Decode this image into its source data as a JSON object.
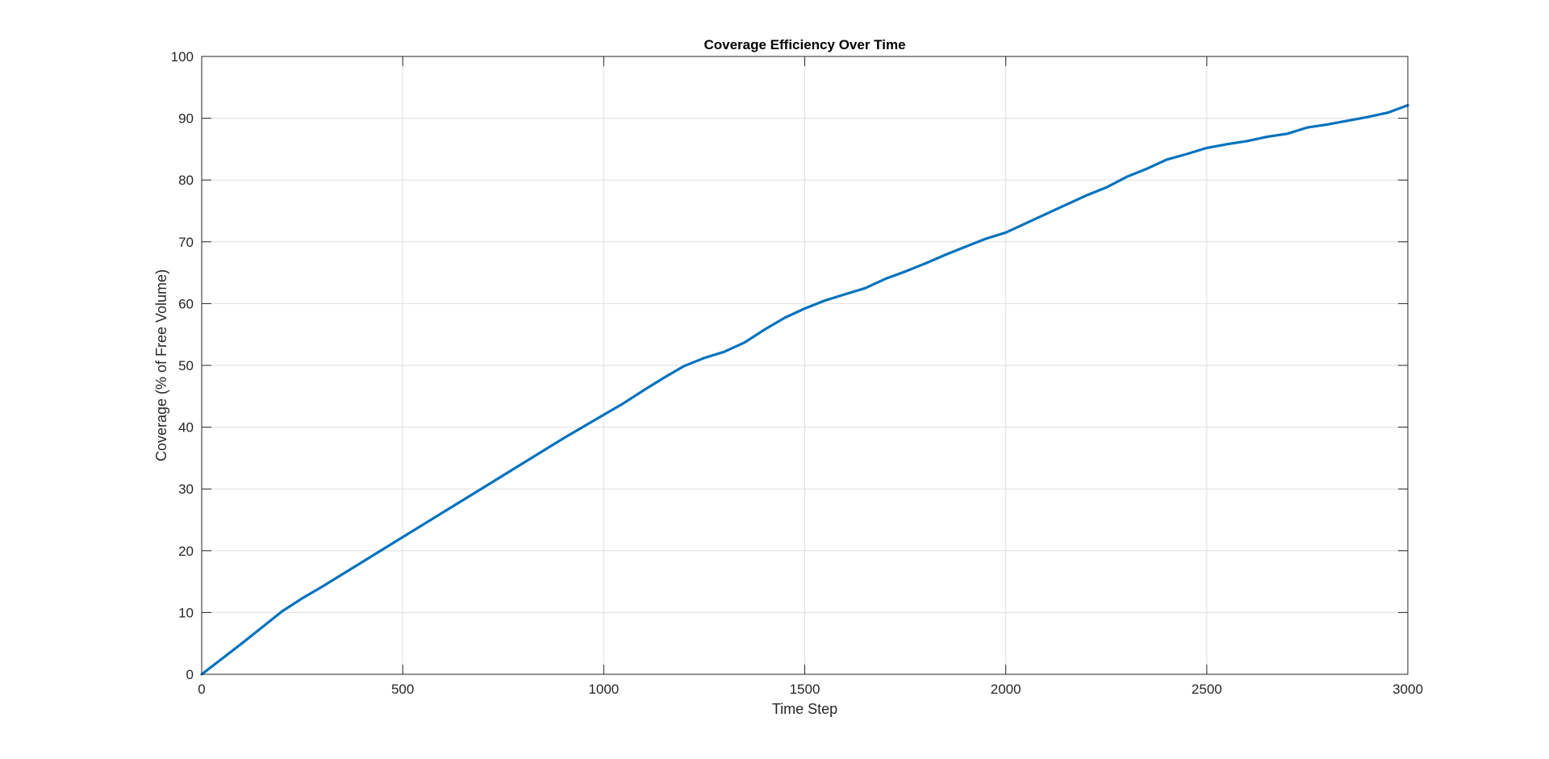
{
  "chart_data": {
    "type": "line",
    "title": "Coverage Efficiency Over Time",
    "xlabel": "Time Step",
    "ylabel": "Coverage (% of Free Volume)",
    "xlim": [
      0,
      3000
    ],
    "ylim": [
      0,
      100
    ],
    "xticks": [
      0,
      500,
      1000,
      1500,
      2000,
      2500,
      3000
    ],
    "yticks": [
      0,
      10,
      20,
      30,
      40,
      50,
      60,
      70,
      80,
      90,
      100
    ],
    "grid": true,
    "legend": "none",
    "line_color": "#0072BD",
    "series": [
      {
        "x": [
          0,
          50,
          100,
          150,
          200,
          250,
          300,
          400,
          500,
          600,
          700,
          800,
          900,
          1000,
          1050,
          1100,
          1150,
          1200,
          1250,
          1300,
          1350,
          1400,
          1450,
          1500,
          1550,
          1600,
          1650,
          1700,
          1750,
          1800,
          1850,
          1900,
          1950,
          2000,
          2050,
          2100,
          2150,
          2200,
          2250,
          2300,
          2350,
          2400,
          2450,
          2500,
          2550,
          2600,
          2650,
          2700,
          2750,
          2800,
          2850,
          2900,
          2950,
          3000
        ],
        "y": [
          0,
          2.5,
          5.0,
          7.6,
          10.2,
          12.3,
          14.2,
          18.2,
          22.2,
          26.2,
          30.2,
          34.2,
          38.2,
          42.0,
          43.9,
          46.0,
          48.0,
          49.9,
          51.2,
          52.2,
          53.7,
          55.8,
          57.7,
          59.2,
          60.5,
          61.5,
          62.5,
          64.0,
          65.2,
          66.5,
          67.9,
          69.2,
          70.5,
          71.5,
          73.0,
          74.5,
          76.0,
          77.5,
          78.8,
          80.5,
          81.8,
          83.3,
          84.2,
          85.2,
          85.8,
          86.3,
          87.0,
          87.5,
          88.5,
          89.0,
          89.6,
          90.2,
          90.9,
          92.1
        ]
      }
    ]
  }
}
